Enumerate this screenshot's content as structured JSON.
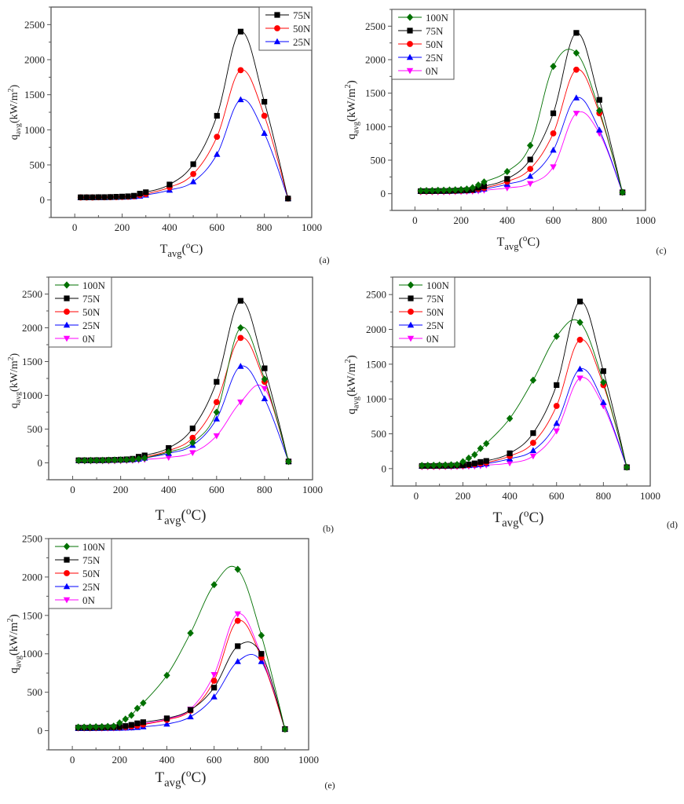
{
  "chart_data": [
    {
      "type": "line",
      "panel": "(a)",
      "xlabel_main": "T",
      "xlabel_sub": "avg",
      "xlabel_sup": "o",
      "xlabel_unit": "C",
      "ylabel_main": "q",
      "ylabel_sub": "avg",
      "ylabel_unit": "(kW/m",
      "ylabel_sup": "2",
      "ylabel_close": ")",
      "xlim": [
        -100,
        1000
      ],
      "ylim": [
        -250,
        2750
      ],
      "xticks": [
        0,
        200,
        400,
        600,
        800,
        1000
      ],
      "yticks": [
        0,
        500,
        1000,
        1500,
        2000,
        2500
      ],
      "legend_position": "top-right",
      "x": [
        25,
        50,
        75,
        100,
        125,
        150,
        175,
        200,
        225,
        250,
        275,
        300,
        400,
        500,
        600,
        700,
        800,
        900
      ],
      "series": [
        {
          "name": "75N",
          "color": "#000000",
          "marker": "square",
          "values": [
            38,
            38,
            38,
            40,
            40,
            42,
            45,
            48,
            52,
            60,
            90,
            110,
            220,
            510,
            1200,
            2400,
            1400,
            20
          ]
        },
        {
          "name": "50N",
          "color": "#ff0000",
          "marker": "circle",
          "values": [
            36,
            36,
            36,
            38,
            38,
            40,
            42,
            44,
            47,
            52,
            70,
            85,
            180,
            370,
            900,
            1850,
            1200,
            20
          ]
        },
        {
          "name": "25N",
          "color": "#0000ff",
          "marker": "triangle-up",
          "values": [
            34,
            34,
            34,
            35,
            35,
            36,
            38,
            40,
            42,
            46,
            55,
            70,
            140,
            260,
            650,
            1430,
            950,
            20
          ]
        }
      ]
    },
    {
      "type": "line",
      "panel": "(c)",
      "xlabel_main": "T",
      "xlabel_sub": "avg",
      "xlabel_sup": "o",
      "xlabel_unit": "C",
      "ylabel_main": "q",
      "ylabel_sub": "avg",
      "ylabel_unit": "(kW/m",
      "ylabel_sup": "2",
      "ylabel_close": ")",
      "xlim": [
        -100,
        1000
      ],
      "ylim": [
        -250,
        2750
      ],
      "xticks": [
        0,
        200,
        400,
        600,
        800,
        1000
      ],
      "yticks": [
        0,
        500,
        1000,
        1500,
        2000,
        2500
      ],
      "legend_position": "top-left",
      "x": [
        25,
        50,
        75,
        100,
        125,
        150,
        175,
        200,
        225,
        250,
        275,
        300,
        400,
        500,
        600,
        700,
        800,
        900
      ],
      "series": [
        {
          "name": "100N",
          "color": "#007000",
          "marker": "diamond",
          "values": [
            45,
            46,
            48,
            50,
            52,
            55,
            58,
            62,
            70,
            90,
            130,
            175,
            330,
            720,
            1900,
            2100,
            1240,
            20
          ]
        },
        {
          "name": "75N",
          "color": "#000000",
          "marker": "square",
          "values": [
            38,
            38,
            38,
            40,
            40,
            42,
            45,
            48,
            52,
            60,
            90,
            110,
            220,
            510,
            1200,
            2400,
            1400,
            20
          ]
        },
        {
          "name": "50N",
          "color": "#ff0000",
          "marker": "circle",
          "values": [
            36,
            36,
            36,
            38,
            38,
            40,
            42,
            44,
            47,
            52,
            70,
            85,
            180,
            370,
            900,
            1850,
            1200,
            20
          ]
        },
        {
          "name": "25N",
          "color": "#0000ff",
          "marker": "triangle-up",
          "values": [
            34,
            34,
            34,
            35,
            35,
            36,
            38,
            40,
            42,
            46,
            55,
            70,
            140,
            260,
            650,
            1430,
            950,
            20
          ]
        },
        {
          "name": "0N",
          "color": "#ff00ff",
          "marker": "triangle-down",
          "values": [
            25,
            25,
            25,
            26,
            26,
            27,
            28,
            30,
            32,
            35,
            40,
            50,
            85,
            150,
            400,
            1200,
            900,
            20
          ]
        }
      ]
    },
    {
      "type": "line",
      "panel": "(b)",
      "xlabel_main": "T",
      "xlabel_sub": "avg",
      "xlabel_sup": "o",
      "xlabel_unit": "C",
      "ylabel_main": "q",
      "ylabel_sub": "avg",
      "ylabel_unit": "(kW/m",
      "ylabel_sup": "2",
      "ylabel_close": ")",
      "xlim": [
        -100,
        1000
      ],
      "ylim": [
        -250,
        2750
      ],
      "xticks": [
        0,
        200,
        400,
        600,
        800,
        1000
      ],
      "yticks": [
        0,
        500,
        1000,
        1500,
        2000,
        2500
      ],
      "legend_position": "top-left",
      "x": [
        25,
        50,
        75,
        100,
        125,
        150,
        175,
        200,
        225,
        250,
        275,
        300,
        400,
        500,
        600,
        700,
        800,
        900
      ],
      "series": [
        {
          "name": "100N",
          "color": "#007000",
          "marker": "diamond",
          "values": [
            35,
            35,
            36,
            37,
            38,
            40,
            42,
            44,
            46,
            50,
            58,
            70,
            160,
            300,
            750,
            2000,
            1240,
            20
          ]
        },
        {
          "name": "75N",
          "color": "#000000",
          "marker": "square",
          "values": [
            38,
            38,
            38,
            40,
            40,
            42,
            45,
            48,
            52,
            60,
            90,
            110,
            220,
            510,
            1200,
            2400,
            1400,
            20
          ]
        },
        {
          "name": "50N",
          "color": "#ff0000",
          "marker": "circle",
          "values": [
            36,
            36,
            36,
            38,
            38,
            40,
            42,
            44,
            47,
            52,
            70,
            85,
            180,
            370,
            900,
            1850,
            1200,
            20
          ]
        },
        {
          "name": "25N",
          "color": "#0000ff",
          "marker": "triangle-up",
          "values": [
            34,
            34,
            34,
            35,
            35,
            36,
            38,
            40,
            42,
            46,
            55,
            70,
            140,
            260,
            650,
            1430,
            950,
            20
          ]
        },
        {
          "name": "0N",
          "color": "#ff00ff",
          "marker": "triangle-down",
          "values": [
            25,
            25,
            25,
            26,
            26,
            27,
            28,
            30,
            32,
            35,
            40,
            50,
            80,
            150,
            400,
            900,
            1100,
            20
          ]
        }
      ]
    },
    {
      "type": "line",
      "panel": "(d)",
      "xlabel_main": "T",
      "xlabel_sub": "avg",
      "xlabel_sup": "o",
      "xlabel_unit": "C",
      "ylabel_main": "q",
      "ylabel_sub": "avg",
      "ylabel_unit": "(kW/m",
      "ylabel_sup": "2",
      "ylabel_close": ")",
      "xlim": [
        -100,
        1000
      ],
      "ylim": [
        -250,
        2750
      ],
      "xticks": [
        0,
        200,
        400,
        600,
        800,
        1000
      ],
      "yticks": [
        0,
        500,
        1000,
        1500,
        2000,
        2500
      ],
      "legend_position": "top-left",
      "x": [
        25,
        50,
        75,
        100,
        125,
        150,
        175,
        200,
        225,
        250,
        275,
        300,
        400,
        500,
        600,
        700,
        800,
        900
      ],
      "series": [
        {
          "name": "100N",
          "color": "#007000",
          "marker": "diamond",
          "values": [
            45,
            46,
            48,
            50,
            52,
            55,
            58,
            100,
            150,
            200,
            290,
            360,
            720,
            1270,
            1900,
            2100,
            1240,
            20
          ]
        },
        {
          "name": "75N",
          "color": "#000000",
          "marker": "square",
          "values": [
            38,
            38,
            38,
            40,
            40,
            42,
            45,
            48,
            60,
            75,
            95,
            110,
            220,
            510,
            1200,
            2400,
            1400,
            20
          ]
        },
        {
          "name": "50N",
          "color": "#ff0000",
          "marker": "circle",
          "values": [
            36,
            36,
            36,
            38,
            38,
            40,
            42,
            44,
            50,
            60,
            75,
            85,
            180,
            370,
            900,
            1850,
            1200,
            20
          ]
        },
        {
          "name": "25N",
          "color": "#0000ff",
          "marker": "triangle-up",
          "values": [
            34,
            34,
            34,
            35,
            35,
            36,
            38,
            40,
            44,
            50,
            58,
            70,
            140,
            260,
            650,
            1430,
            950,
            20
          ]
        },
        {
          "name": "0N",
          "color": "#ff00ff",
          "marker": "triangle-down",
          "values": [
            25,
            25,
            25,
            26,
            26,
            27,
            28,
            30,
            32,
            35,
            40,
            50,
            80,
            180,
            540,
            1300,
            900,
            20
          ]
        }
      ]
    },
    {
      "type": "line",
      "panel": "(e)",
      "xlabel_main": "T",
      "xlabel_sub": "avg",
      "xlabel_sup": "o",
      "xlabel_unit": "C",
      "ylabel_main": "q",
      "ylabel_sub": "avg",
      "ylabel_unit": "(kW/m",
      "ylabel_sup": "2",
      "ylabel_close": ")",
      "xlim": [
        -100,
        1000
      ],
      "ylim": [
        -250,
        2500
      ],
      "xticks": [
        0,
        200,
        400,
        600,
        800,
        1000
      ],
      "yticks": [
        0,
        500,
        1000,
        1500,
        2000,
        2500
      ],
      "legend_position": "top-left",
      "x": [
        25,
        50,
        75,
        100,
        125,
        150,
        175,
        200,
        225,
        250,
        275,
        300,
        400,
        500,
        600,
        700,
        800,
        900
      ],
      "series": [
        {
          "name": "100N",
          "color": "#007000",
          "marker": "diamond",
          "values": [
            45,
            46,
            48,
            50,
            52,
            55,
            58,
            100,
            150,
            200,
            290,
            360,
            720,
            1270,
            1900,
            2100,
            1240,
            20
          ]
        },
        {
          "name": "75N",
          "color": "#000000",
          "marker": "square",
          "values": [
            38,
            38,
            38,
            40,
            40,
            42,
            45,
            48,
            60,
            75,
            95,
            110,
            160,
            270,
            560,
            1100,
            1000,
            20
          ]
        },
        {
          "name": "50N",
          "color": "#ff0000",
          "marker": "circle",
          "values": [
            36,
            36,
            36,
            38,
            38,
            40,
            42,
            44,
            48,
            55,
            65,
            80,
            140,
            260,
            650,
            1430,
            950,
            20
          ]
        },
        {
          "name": "25N",
          "color": "#0000ff",
          "marker": "triangle-up",
          "values": [
            28,
            28,
            28,
            29,
            29,
            30,
            31,
            32,
            34,
            37,
            42,
            50,
            85,
            180,
            440,
            900,
            900,
            20
          ]
        },
        {
          "name": "0N",
          "color": "#ff00ff",
          "marker": "triangle-down",
          "values": [
            30,
            30,
            30,
            31,
            31,
            32,
            33,
            35,
            38,
            42,
            55,
            90,
            150,
            280,
            730,
            1520,
            980,
            20
          ]
        }
      ]
    }
  ]
}
